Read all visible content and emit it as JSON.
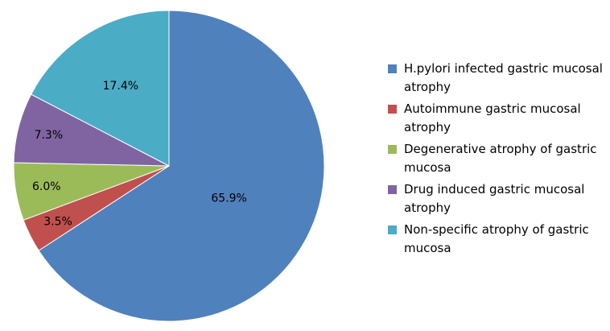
{
  "chart_data": {
    "type": "pie",
    "legend_position": "right",
    "slices": [
      {
        "label": "H.pylori infected gastric mucosal atrophy",
        "value": 65.9,
        "value_label": "65.9%",
        "color": "#4F81BD"
      },
      {
        "label": "Autoimmune gastric mucosal atrophy",
        "value": 3.5,
        "value_label": "3.5%",
        "color": "#C0504D"
      },
      {
        "label": "Degenerative atrophy of gastric mucosa",
        "value": 6.0,
        "value_label": "6.0%",
        "color": "#9BBB59"
      },
      {
        "label": "Drug induced gastric mucosal atrophy",
        "value": 7.3,
        "value_label": "7.3%",
        "color": "#8064A2"
      },
      {
        "label": "Non-specific atrophy of gastric mucosa",
        "value": 17.4,
        "value_label": "17.4%",
        "color": "#4BACC6"
      }
    ]
  }
}
